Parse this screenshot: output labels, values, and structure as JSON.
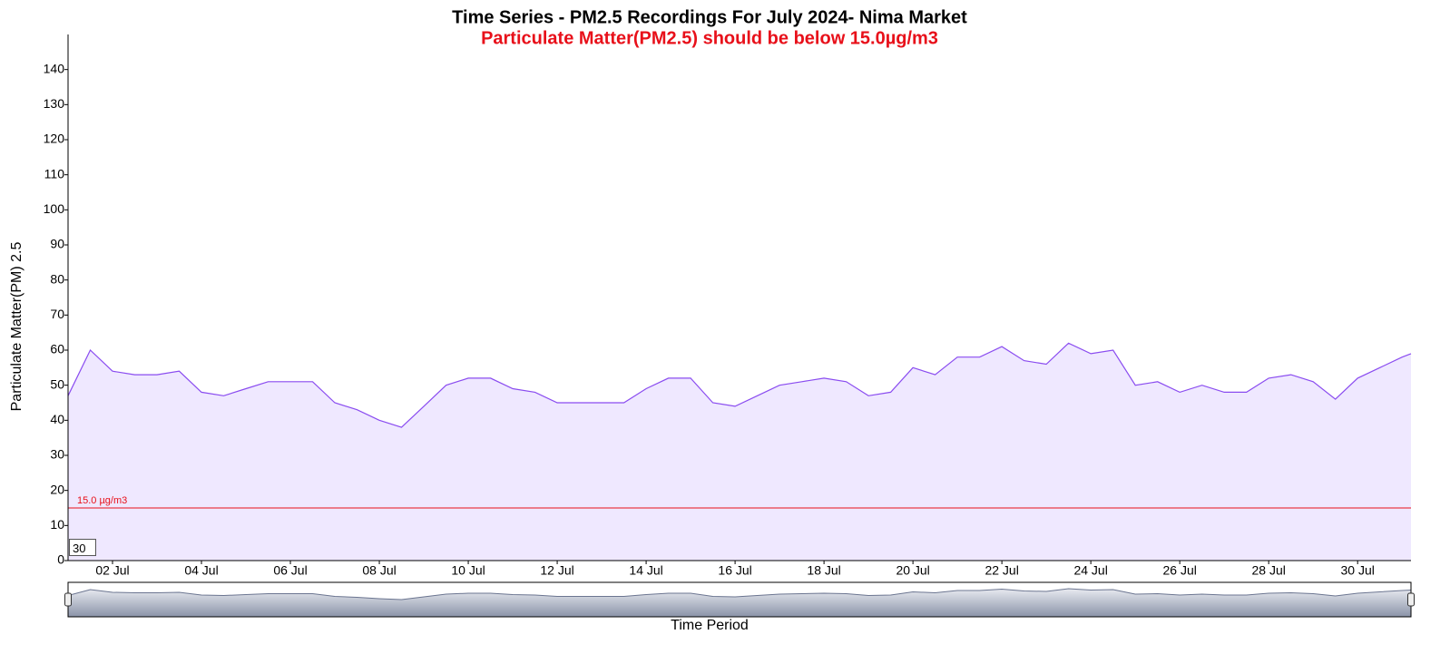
{
  "chart_data": {
    "type": "line",
    "title": "Time Series - PM2.5 Recordings For July 2024- Nima Market",
    "subtitle": "Particulate Matter(PM2.5) should be below 15.0µg/m3",
    "x_label": "Time Period",
    "y_label": "Particulate Matter(PM) 2.5",
    "color": "#8a4cf0",
    "fill": "#efe8ff",
    "x": [
      1.0,
      1.5,
      2.0,
      2.5,
      3.0,
      3.5,
      4.0,
      4.5,
      5.0,
      5.5,
      6.0,
      6.5,
      7.0,
      7.5,
      8.0,
      8.5,
      9.0,
      9.5,
      10.0,
      10.5,
      11.0,
      11.5,
      12.0,
      12.5,
      13.0,
      13.5,
      14.0,
      14.5,
      15.0,
      15.5,
      16.0,
      16.5,
      17.0,
      17.5,
      18.0,
      18.5,
      19.0,
      19.5,
      20.0,
      20.5,
      21.0,
      21.5,
      22.0,
      22.5,
      23.0,
      23.5,
      24.0,
      24.5,
      25.0,
      25.5,
      26.0,
      26.5,
      27.0,
      27.5,
      28.0,
      28.5,
      29.0,
      29.5,
      30.0,
      30.5,
      31.0,
      31.2
    ],
    "values": [
      47,
      60,
      54,
      53,
      53,
      54,
      48,
      47,
      49,
      51,
      51,
      51,
      45,
      43,
      40,
      38,
      44,
      50,
      52,
      52,
      49,
      48,
      45,
      45,
      45,
      45,
      49,
      52,
      52,
      45,
      44,
      47,
      50,
      51,
      52,
      51,
      47,
      48,
      55,
      53,
      58,
      58,
      61,
      57,
      56,
      62,
      59,
      60,
      50,
      51,
      48,
      50,
      48,
      48,
      52,
      53,
      51,
      46,
      52,
      55,
      58,
      59
    ],
    "xlim": [
      1,
      31.2
    ],
    "xticks": [
      {
        "value": 2,
        "label": "02 Jul"
      },
      {
        "value": 4,
        "label": "04 Jul"
      },
      {
        "value": 6,
        "label": "06 Jul"
      },
      {
        "value": 8,
        "label": "08 Jul"
      },
      {
        "value": 10,
        "label": "10 Jul"
      },
      {
        "value": 12,
        "label": "12 Jul"
      },
      {
        "value": 14,
        "label": "14 Jul"
      },
      {
        "value": 16,
        "label": "16 Jul"
      },
      {
        "value": 18,
        "label": "18 Jul"
      },
      {
        "value": 20,
        "label": "20 Jul"
      },
      {
        "value": 22,
        "label": "22 Jul"
      },
      {
        "value": 24,
        "label": "24 Jul"
      },
      {
        "value": 26,
        "label": "26 Jul"
      },
      {
        "value": 28,
        "label": "28 Jul"
      },
      {
        "value": 30,
        "label": "30 Jul"
      }
    ],
    "ylim": [
      0,
      150
    ],
    "yticks": [
      0,
      10,
      20,
      30,
      40,
      50,
      60,
      70,
      80,
      90,
      100,
      110,
      120,
      130,
      140
    ],
    "threshold": {
      "value": 15,
      "label": "15.0 µg/m3",
      "color": "#e8101a"
    },
    "roll_period": 30
  }
}
